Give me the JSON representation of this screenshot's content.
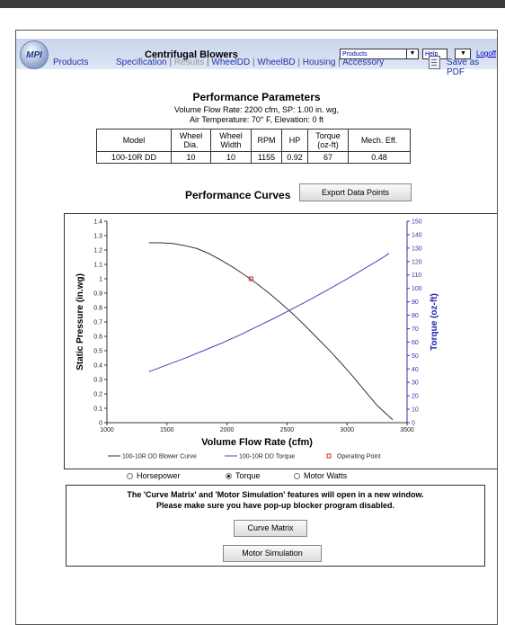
{
  "app": {
    "logo_text": "MPI",
    "title": "Centrifugal Blowers",
    "products_select": "Products",
    "help_select": "Help",
    "logoff_link": "Logoff"
  },
  "nav": {
    "products": "Products",
    "tabs": [
      {
        "label": "Specification",
        "enabled": true
      },
      {
        "label": "Results",
        "enabled": false
      },
      {
        "label": "WheelDD",
        "enabled": true
      },
      {
        "label": "WheelBD",
        "enabled": true
      },
      {
        "label": "Housing",
        "enabled": true
      },
      {
        "label": "Accessory",
        "enabled": true
      }
    ],
    "save_pdf": "Save as PDF"
  },
  "performance": {
    "heading": "Performance Parameters",
    "line1": "Volume Flow Rate: 2200 cfm, SP: 1.00 in. wg,",
    "line2": "Air Temperature: 70° F, Elevation: 0 ft",
    "table": {
      "headers": [
        {
          "l1": "Model",
          "l2": ""
        },
        {
          "l1": "Wheel",
          "l2": "Dia."
        },
        {
          "l1": "Wheel",
          "l2": "Width"
        },
        {
          "l1": "RPM",
          "l2": ""
        },
        {
          "l1": "HP",
          "l2": ""
        },
        {
          "l1": "Torque",
          "l2": "(oz-ft)"
        },
        {
          "l1": "Mech. Eff.",
          "l2": ""
        }
      ],
      "row": [
        "100-10R DD",
        "10",
        "10",
        "1155",
        "0.92",
        "67",
        "0.48"
      ]
    }
  },
  "curves": {
    "heading": "Performance Curves",
    "export_button": "Export Data Points"
  },
  "chart_data": {
    "type": "line",
    "xlabel": "Volume Flow Rate (cfm)",
    "ylabel": "Static Pressure (in.wg)",
    "y2label": "Torque (oz-ft)",
    "xlim": [
      1000,
      3500
    ],
    "ylim": [
      0,
      1.4
    ],
    "y2lim": [
      0,
      150
    ],
    "xticks": [
      1000,
      1500,
      2000,
      2500,
      3000,
      3500
    ],
    "yticks": [
      0,
      0.1,
      0.2,
      0.3,
      0.4,
      0.5,
      0.6,
      0.7,
      0.8,
      0.9,
      1,
      1.1,
      1.2,
      1.3,
      1.4
    ],
    "y2ticks": [
      0,
      10,
      20,
      30,
      40,
      50,
      60,
      70,
      80,
      90,
      100,
      110,
      120,
      130,
      140,
      150
    ],
    "grid": false,
    "legend_position": "bottom",
    "series": [
      {
        "name": "100-10R DD Blower Curve",
        "axis": "left",
        "color": "#333333",
        "x": [
          1350,
          1450,
          1550,
          1650,
          1750,
          1850,
          1950,
          2050,
          2150,
          2250,
          2350,
          2450,
          2550,
          2650,
          2750,
          2850,
          2950,
          3050,
          3150,
          3250,
          3380
        ],
        "y": [
          1.25,
          1.25,
          1.245,
          1.23,
          1.21,
          1.175,
          1.13,
          1.08,
          1.025,
          0.965,
          0.9,
          0.83,
          0.755,
          0.675,
          0.59,
          0.505,
          0.415,
          0.32,
          0.22,
          0.12,
          0.02
        ]
      },
      {
        "name": "100-10R DD Torque",
        "axis": "right",
        "color": "#4444bb",
        "x": [
          1350,
          1500,
          1650,
          1800,
          1950,
          2100,
          2250,
          2400,
          2550,
          2700,
          2850,
          3000,
          3150,
          3300,
          3350
        ],
        "y": [
          38,
          43,
          48,
          53.5,
          59,
          65,
          71.5,
          78,
          85,
          92,
          99.5,
          107,
          115,
          123,
          126
        ]
      }
    ],
    "operating_point": {
      "name": "Operating Point",
      "x": 2200,
      "y": 1.0,
      "color": "#cc2222"
    }
  },
  "options": {
    "radio": [
      {
        "label": "Horsepower",
        "checked": false
      },
      {
        "label": "Torque",
        "checked": true
      },
      {
        "label": "Motor Watts",
        "checked": false
      }
    ]
  },
  "notice": {
    "line1": "The 'Curve Matrix' and 'Motor Simulation' features will open in a new window.",
    "line2": "Please make sure you have pop-up blocker program disabled.",
    "curve_matrix_button": "Curve Matrix",
    "motor_simulation_button": "Motor Simulation"
  }
}
